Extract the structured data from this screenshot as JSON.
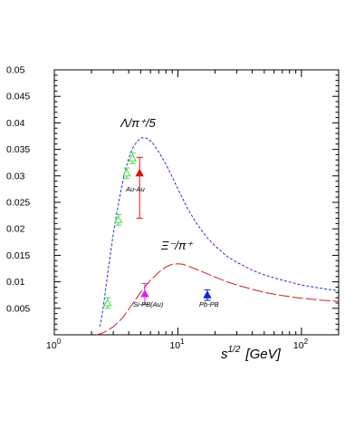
{
  "chart_data": {
    "type": "line",
    "xscale": "log",
    "xlim": [
      1,
      200
    ],
    "ylim": [
      0,
      0.05
    ],
    "xlabel": "s^{1/2}  [GeV]",
    "ylabel": "",
    "y_ticks": [
      "0.005",
      "0.01",
      "0.015",
      "0.02",
      "0.025",
      "0.03",
      "0.035",
      "0.04",
      "0.045",
      "0.05"
    ],
    "x_ticks": [
      {
        "label": "10",
        "sup": "0",
        "value": 1
      },
      {
        "label": "10",
        "sup": "1",
        "value": 10
      },
      {
        "label": "10",
        "sup": "2",
        "value": 100
      }
    ],
    "series": [
      {
        "name": "Λ/π⁺/5",
        "kind": "curve",
        "style": "dashed",
        "color": "#2233cc",
        "x": [
          2.33,
          2.4,
          2.5,
          2.6,
          2.7,
          2.85,
          3.0,
          3.2,
          3.45,
          3.7,
          4.0,
          4.3,
          4.7,
          5.1,
          5.6,
          6.2,
          7.0,
          8.0,
          9.0,
          10.0,
          12.0,
          14.0,
          17.0,
          20.0,
          25.0,
          30.0,
          40.0,
          50.0,
          70.0,
          100.0,
          150.0,
          200.0
        ],
        "y": [
          0.0015,
          0.003,
          0.0055,
          0.0085,
          0.0115,
          0.0155,
          0.019,
          0.023,
          0.027,
          0.0305,
          0.0333,
          0.0352,
          0.0366,
          0.0372,
          0.0371,
          0.0363,
          0.0345,
          0.0322,
          0.0298,
          0.0275,
          0.0238,
          0.0212,
          0.0185,
          0.0168,
          0.0148,
          0.0137,
          0.0122,
          0.0113,
          0.0103,
          0.0094,
          0.0087,
          0.0083
        ]
      },
      {
        "name": "Ξ⁻/π⁺",
        "kind": "curve",
        "style": "long-dashed",
        "color": "#cc2222",
        "x": [
          2.2,
          2.5,
          3.0,
          3.5,
          4.0,
          4.5,
          5.0,
          6.0,
          7.0,
          8.0,
          9.0,
          10.0,
          11.0,
          12.0,
          14.0,
          17.0,
          20.0,
          25.0,
          30.0,
          40.0,
          50.0,
          70.0,
          100.0,
          150.0,
          200.0
        ],
        "y": [
          0.0,
          0.0004,
          0.0015,
          0.003,
          0.0048,
          0.0065,
          0.008,
          0.0103,
          0.0118,
          0.0128,
          0.0133,
          0.0134,
          0.0133,
          0.013,
          0.0124,
          0.0116,
          0.0109,
          0.01,
          0.0094,
          0.0086,
          0.008,
          0.0074,
          0.0069,
          0.0065,
          0.0063
        ]
      },
      {
        "name": "Λ data",
        "kind": "points",
        "marker": "open-triangle",
        "color": "#44dd44",
        "points": [
          {
            "x": 2.7,
            "y": 0.006,
            "err": 0.001
          },
          {
            "x": 3.3,
            "y": 0.0217,
            "err": 0.001
          },
          {
            "x": 3.85,
            "y": 0.0305,
            "err": 0.001
          },
          {
            "x": 4.3,
            "y": 0.0333,
            "err": 0.001
          }
        ]
      },
      {
        "name": "Au-Au",
        "kind": "points",
        "marker": "filled-triangle",
        "color": "#dd1111",
        "points": [
          {
            "x": 4.9,
            "y": 0.0305,
            "err_up": 0.003,
            "err_down": 0.0085
          }
        ]
      },
      {
        "name": "Si-PB(Au)",
        "kind": "points",
        "marker": "filled-triangle",
        "color": "#dd22dd",
        "points": [
          {
            "x": 5.4,
            "y": 0.0077,
            "err": 0.002
          }
        ]
      },
      {
        "name": "Pb-PB",
        "kind": "points",
        "marker": "filled-triangle",
        "color": "#1122cc",
        "points": [
          {
            "x": 17.3,
            "y": 0.0075,
            "err": 0.001
          }
        ]
      }
    ],
    "annotations": {
      "lambda_label": "Λ/π⁺/5",
      "xi_label": "Ξ⁻/π⁺",
      "au_au": "Au-Au",
      "si_pb": "Si-PB(Au)",
      "pb_pb": "Pb-PB"
    }
  }
}
